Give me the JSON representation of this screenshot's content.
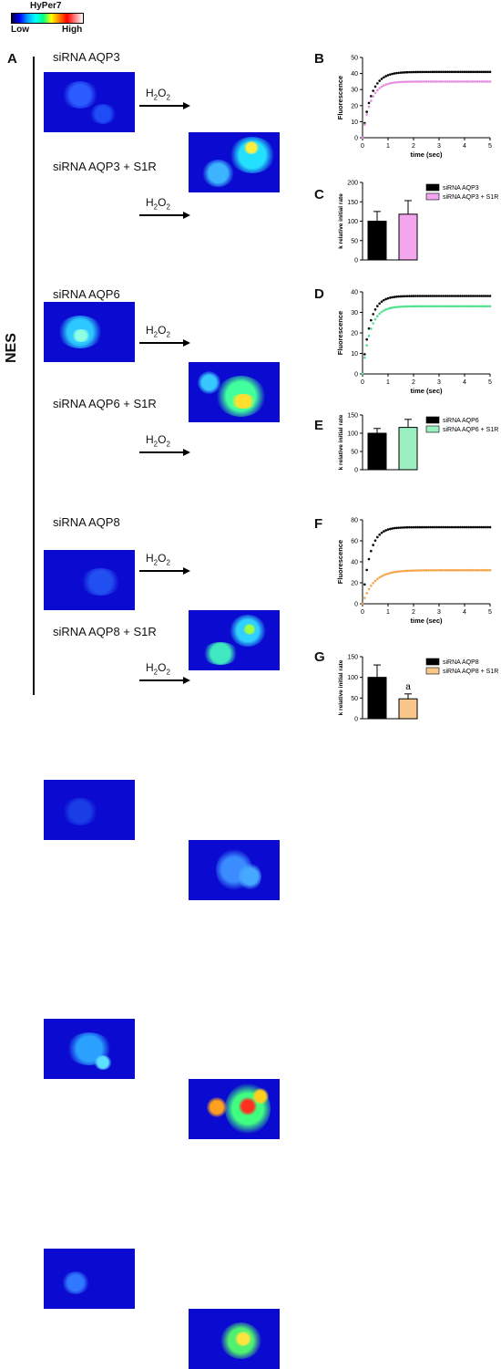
{
  "colorbar": {
    "title": "HyPer7",
    "low": "Low",
    "high": "High"
  },
  "panel_a": {
    "letter": "A",
    "side_label": "NES",
    "treatment": "H",
    "treatment_sub": "2",
    "treatment_tail": "O"
  },
  "conditions": [
    "siRNA  AQP3",
    "siRNA  AQP3 + S1R",
    "siRNA  AQP6",
    "siRNA  AQP6 + S1R",
    "siRNA  AQP8",
    "siRNA  AQP8 + S1R"
  ],
  "letters": {
    "b": "B",
    "c": "C",
    "d": "D",
    "e": "E",
    "f": "F",
    "g": "G"
  },
  "annotation_g": "a",
  "chart_data": [
    {
      "panel": "B",
      "type": "line",
      "xlabel": "time (sec)",
      "ylabel": "Fluorescence",
      "xlim": [
        0,
        5
      ],
      "ylim": [
        0,
        50
      ],
      "xticks": [
        0,
        1,
        2,
        3,
        4,
        5
      ],
      "yticks": [
        0,
        10,
        20,
        30,
        40,
        50
      ],
      "series": [
        {
          "color": "#000000",
          "plateau": 41,
          "rate": 3.0
        },
        {
          "color": "#e58ee0",
          "plateau": 35,
          "rate": 3.2
        }
      ]
    },
    {
      "panel": "C",
      "type": "bar",
      "ylabel": "k relative initial rate",
      "ylim": [
        0,
        200
      ],
      "yticks": [
        0,
        50,
        100,
        150,
        200
      ],
      "series": [
        {
          "name": "siRNA AQP3",
          "color": "#000000",
          "value": 100,
          "error": 25
        },
        {
          "name": "siRNA AQP3 + S1R",
          "color": "#f3a6ee",
          "value": 118,
          "error": 35
        }
      ]
    },
    {
      "panel": "D",
      "type": "line",
      "xlabel": "time (sec)",
      "ylabel": "Fluorescence",
      "xlim": [
        0,
        5
      ],
      "ylim": [
        0,
        40
      ],
      "xticks": [
        0,
        1,
        2,
        3,
        4,
        5
      ],
      "yticks": [
        0,
        10,
        20,
        30,
        40
      ],
      "series": [
        {
          "color": "#000000",
          "plateau": 38,
          "rate": 3.5
        },
        {
          "color": "#4ee08c",
          "plateau": 33,
          "rate": 3.3
        }
      ]
    },
    {
      "panel": "E",
      "type": "bar",
      "ylabel": "k relative initial rate",
      "ylim": [
        0,
        150
      ],
      "yticks": [
        0,
        50,
        100,
        150
      ],
      "series": [
        {
          "name": "siRNA AQP6",
          "color": "#000000",
          "value": 100,
          "error": 13
        },
        {
          "name": "siRNA AQP6 + S1R",
          "color": "#9af0c0",
          "value": 116,
          "error": 22
        }
      ]
    },
    {
      "panel": "F",
      "type": "line",
      "xlabel": "time (sec)",
      "ylabel": "Fluorescence",
      "xlim": [
        0,
        5
      ],
      "ylim": [
        0,
        80
      ],
      "xticks": [
        0,
        1,
        2,
        3,
        4,
        5
      ],
      "yticks": [
        0,
        20,
        40,
        60,
        80
      ],
      "series": [
        {
          "color": "#000000",
          "plateau": 73,
          "rate": 3.5
        },
        {
          "color": "#f5a54a",
          "plateau": 32,
          "rate": 2.3
        }
      ]
    },
    {
      "panel": "G",
      "type": "bar",
      "ylabel": "k relative initial rate",
      "ylim": [
        0,
        150
      ],
      "yticks": [
        0,
        50,
        100,
        150
      ],
      "series": [
        {
          "name": "siRNA AQP8",
          "color": "#000000",
          "value": 100,
          "error": 30
        },
        {
          "name": "siRNA AQP8 + S1R",
          "color": "#f9c78a",
          "value": 48,
          "error": 12
        }
      ]
    }
  ]
}
